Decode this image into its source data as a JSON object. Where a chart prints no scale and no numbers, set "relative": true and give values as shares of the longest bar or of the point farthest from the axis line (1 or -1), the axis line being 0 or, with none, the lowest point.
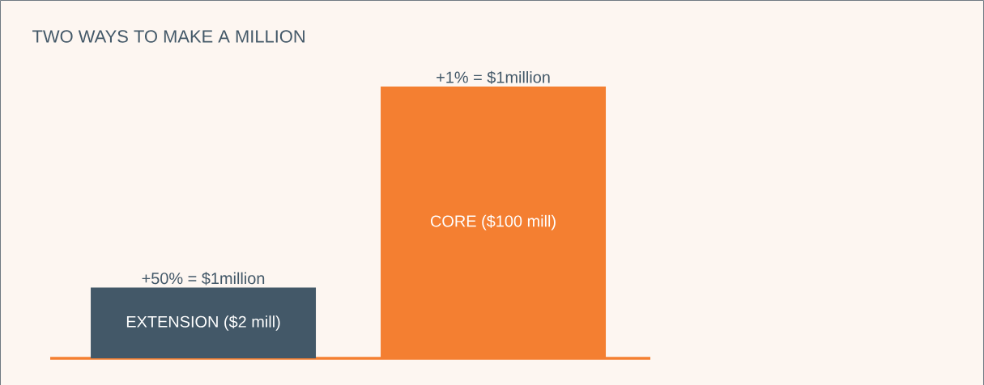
{
  "chart_data": {
    "type": "bar",
    "title": "TWO WAYS TO MAKE A MILLION",
    "categories": [
      "EXTENSION ($2 mill)",
      "CORE ($100 mill)"
    ],
    "values": [
      0.26,
      1
    ],
    "colors": [
      "#435868",
      "#f47f31"
    ],
    "annotations": [
      {
        "text": "+50% = $1million",
        "x": "EXTENSION ($2 mill)",
        "y": 0.26
      },
      {
        "text": "+1% = $1million",
        "x": "CORE ($100 mill)",
        "y": 1
      }
    ],
    "relative": true
  }
}
